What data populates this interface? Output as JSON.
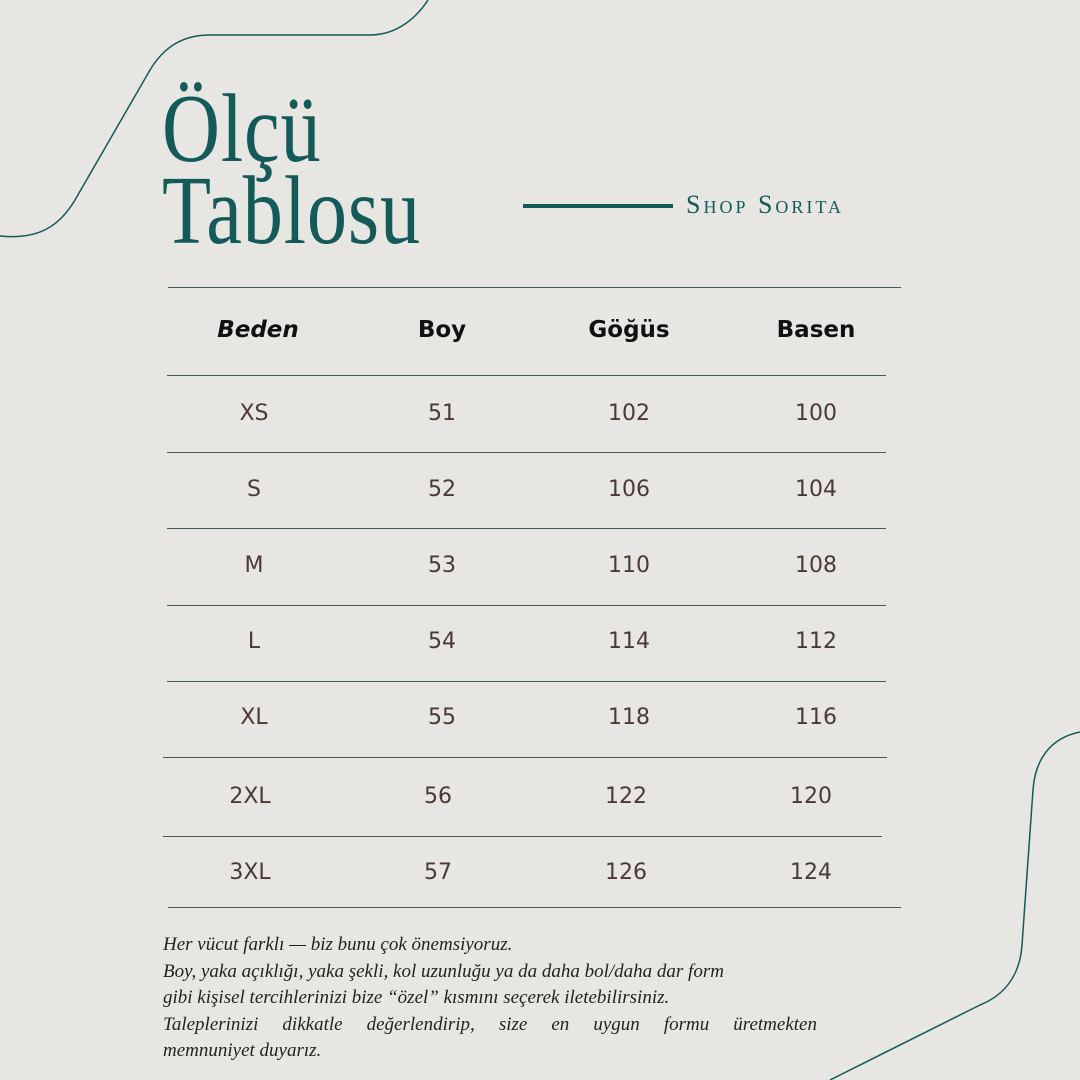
{
  "title_line1": "Ölçü",
  "title_line2": "Tablosu",
  "brand": "Shop Sorita",
  "colors": {
    "accent": "#135a58",
    "background": "#e8e6e2",
    "text": "#4a3a32"
  },
  "table": {
    "headers": [
      "Beden",
      "Boy",
      "Göğüs",
      "Basen"
    ],
    "rows": [
      [
        "XS",
        "51",
        "102",
        "100"
      ],
      [
        "S",
        "52",
        "106",
        "104"
      ],
      [
        "M",
        "53",
        "110",
        "108"
      ],
      [
        "L",
        "54",
        "114",
        "112"
      ],
      [
        "XL",
        "55",
        "118",
        "116"
      ],
      [
        "2XL",
        "56",
        "122",
        "120"
      ],
      [
        "3XL",
        "57",
        "126",
        "124"
      ]
    ]
  },
  "note": [
    "Her vücut farklı — biz bunu çok önemsiyoruz.",
    "Boy, yaka açıklığı, yaka şekli, kol uzunluğu ya da daha bol/daha dar form",
    "gibi kişisel tercihlerinizi bize “özel” kısmını seçerek iletebilirsiniz.",
    "Taleplerinizi dikkatle değerlendirip, size en uygun formu üretmekten",
    "memnuniyet duyarız."
  ]
}
